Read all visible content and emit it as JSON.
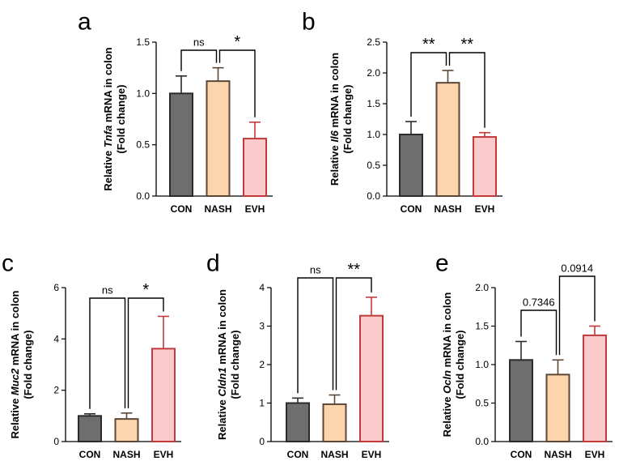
{
  "chart_data": [
    {
      "panel": "a",
      "type": "bar",
      "categories": [
        "CON",
        "NASH",
        "EVH"
      ],
      "values": [
        1.0,
        1.12,
        0.56
      ],
      "errors": [
        0.17,
        0.13,
        0.16
      ],
      "ylim": [
        0,
        1.5
      ],
      "yticks": [
        "0.0",
        "0.5",
        "1.0",
        "1.5"
      ],
      "ylabel": {
        "prefix": "Relative ",
        "gene": "Tnfa",
        "suffix": " mRNA in colon",
        "line2": "(Fold change)"
      },
      "comparisons": [
        {
          "from": 0,
          "to": 1,
          "label": "ns"
        },
        {
          "from": 1,
          "to": 2,
          "label": "*"
        }
      ]
    },
    {
      "panel": "b",
      "type": "bar",
      "categories": [
        "CON",
        "NASH",
        "EVH"
      ],
      "values": [
        1.0,
        1.84,
        0.96
      ],
      "errors": [
        0.21,
        0.2,
        0.07
      ],
      "ylim": [
        0,
        2.5
      ],
      "yticks": [
        "0.0",
        "0.5",
        "1.0",
        "1.5",
        "2.0",
        "2.5"
      ],
      "ylabel": {
        "prefix": "Relative ",
        "gene": "Il6",
        "suffix": " mRNA in colon",
        "line2": "(Fold change)"
      },
      "comparisons": [
        {
          "from": 0,
          "to": 1,
          "label": "**"
        },
        {
          "from": 1,
          "to": 2,
          "label": "**"
        }
      ]
    },
    {
      "panel": "c",
      "type": "bar",
      "categories": [
        "CON",
        "NASH",
        "EVH"
      ],
      "values": [
        1.0,
        0.88,
        3.62
      ],
      "errors": [
        0.08,
        0.23,
        1.26
      ],
      "ylim": [
        0,
        6
      ],
      "yticks": [
        "0",
        "2",
        "4",
        "6"
      ],
      "ylabel": {
        "prefix": "Relative ",
        "gene": "Muc2",
        "suffix": " mRNA in colon",
        "line2": "(Fold change)"
      },
      "comparisons": [
        {
          "from": 0,
          "to": 1,
          "label": "ns"
        },
        {
          "from": 1,
          "to": 2,
          "label": "*"
        }
      ]
    },
    {
      "panel": "d",
      "type": "bar",
      "categories": [
        "CON",
        "NASH",
        "EVH"
      ],
      "values": [
        1.0,
        0.97,
        3.27
      ],
      "errors": [
        0.13,
        0.24,
        0.48
      ],
      "ylim": [
        0,
        4
      ],
      "yticks": [
        "0",
        "1",
        "2",
        "3",
        "4"
      ],
      "ylabel": {
        "prefix": "Relative ",
        "gene": "Cldn1",
        "suffix": " mRNA in colon",
        "line2": "(Fold change)"
      },
      "comparisons": [
        {
          "from": 0,
          "to": 1,
          "label": "ns"
        },
        {
          "from": 1,
          "to": 2,
          "label": "**"
        }
      ]
    },
    {
      "panel": "e",
      "type": "bar",
      "categories": [
        "CON",
        "NASH",
        "EVH"
      ],
      "values": [
        1.06,
        0.87,
        1.38
      ],
      "errors": [
        0.24,
        0.19,
        0.12
      ],
      "ylim": [
        0,
        2.0
      ],
      "yticks": [
        "0.0",
        "0.5",
        "1.0",
        "1.5",
        "2.0"
      ],
      "ylabel": {
        "prefix": "Relative ",
        "gene": "Ocln",
        "suffix": " mRNA in colon",
        "line2": "(Fold change)"
      },
      "comparisons": [
        {
          "from": 0,
          "to": 1,
          "label": "0.7346"
        },
        {
          "from": 1,
          "to": 2,
          "label": "0.0914"
        }
      ]
    }
  ],
  "style": {
    "fills": [
      "#6e6e6e",
      "#fdd5ad",
      "#fbcaca"
    ],
    "strokes": [
      "#2b2b2b",
      "#5c4636",
      "#c23b3b"
    ]
  }
}
